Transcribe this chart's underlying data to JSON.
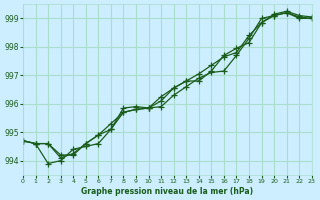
{
  "title": "Graphe pression niveau de la mer (hPa)",
  "background_color": "#cceeff",
  "plot_bg_color": "#cceeff",
  "grid_color": "#aaddcc",
  "line_color": "#1a5c1a",
  "xlim": [
    0,
    23
  ],
  "ylim": [
    993.5,
    999.5
  ],
  "yticks": [
    994,
    995,
    996,
    997,
    998,
    999
  ],
  "xticks": [
    0,
    1,
    2,
    3,
    4,
    5,
    6,
    7,
    8,
    9,
    10,
    11,
    12,
    13,
    14,
    15,
    16,
    17,
    18,
    19,
    20,
    21,
    22,
    23
  ],
  "line1": [
    994.7,
    994.6,
    993.9,
    994.0,
    994.4,
    994.5,
    994.6,
    995.1,
    995.85,
    995.9,
    995.85,
    995.9,
    996.3,
    996.6,
    996.9,
    997.1,
    997.15,
    997.7,
    998.3,
    999.0,
    999.1,
    999.2,
    999.0,
    999.0
  ],
  "line2": [
    994.7,
    994.6,
    994.6,
    994.2,
    994.2,
    994.6,
    994.9,
    995.3,
    995.7,
    995.8,
    995.85,
    996.25,
    996.55,
    996.8,
    997.05,
    997.35,
    997.65,
    997.8,
    998.4,
    998.85,
    999.15,
    999.25,
    999.1,
    999.05
  ],
  "line3": [
    994.7,
    994.6,
    994.6,
    994.1,
    994.25,
    994.6,
    994.9,
    995.1,
    995.7,
    995.8,
    995.85,
    996.1,
    996.55,
    996.8,
    996.8,
    997.15,
    997.7,
    997.95,
    998.15,
    998.85,
    999.1,
    999.2,
    999.05,
    999.0
  ]
}
